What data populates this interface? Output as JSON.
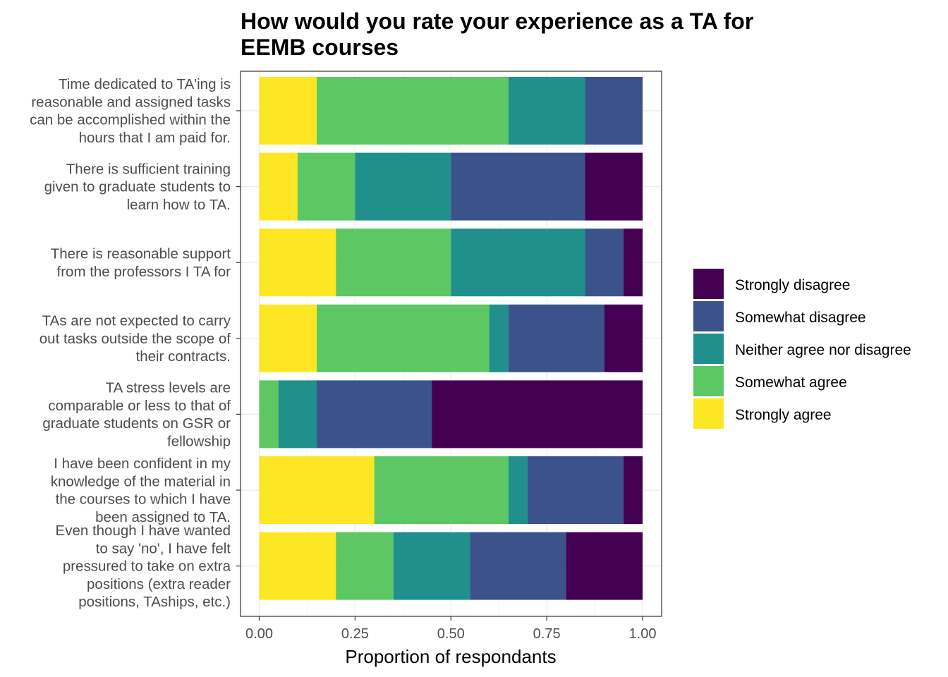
{
  "chart_data": {
    "type": "bar",
    "orientation": "horizontal",
    "stacked": true,
    "title": "How would you rate your experience as a TA for EEMB courses",
    "title_lines": [
      "How would you rate your experience as a TA for",
      "EEMB courses"
    ],
    "xlabel": "Proportion of respondants",
    "ylabel": "",
    "xlim": [
      0,
      1
    ],
    "x_ticks": [
      0,
      0.25,
      0.5,
      0.75,
      1
    ],
    "x_tick_labels": [
      "0.00",
      "0.25",
      "0.50",
      "0.75",
      "1.00"
    ],
    "grid": true,
    "legend_position": "right",
    "categories": [
      {
        "lines": [
          "Time dedicated to TA'ing is",
          "reasonable and assigned tasks",
          "can be accomplished within the",
          "hours that I am paid for."
        ]
      },
      {
        "lines": [
          "There is sufficient training",
          "given to graduate students to",
          "learn how to TA."
        ]
      },
      {
        "lines": [
          "There is reasonable support",
          "from the professors I TA for"
        ]
      },
      {
        "lines": [
          "TAs are not expected to carry",
          "out tasks outside the scope of",
          "their contracts."
        ]
      },
      {
        "lines": [
          "TA stress levels are",
          "comparable or less to that of",
          "graduate students on GSR or",
          "fellowship"
        ]
      },
      {
        "lines": [
          "I have been confident in my",
          "knowledge of the material in",
          "the courses to which I have",
          "been assigned to TA."
        ]
      },
      {
        "lines": [
          "Even though I have wanted",
          "to say 'no', I have felt",
          "pressured to take on extra",
          "positions (extra reader",
          "positions, TAships, etc.)"
        ]
      }
    ],
    "series": [
      {
        "name": "Strongly agree",
        "color": "#FDE725",
        "values": [
          0.15,
          0.1,
          0.2,
          0.15,
          0.0,
          0.3,
          0.2
        ]
      },
      {
        "name": "Somewhat agree",
        "color": "#5DC863",
        "values": [
          0.5,
          0.15,
          0.3,
          0.45,
          0.05,
          0.35,
          0.15
        ]
      },
      {
        "name": "Neither agree nor disagree",
        "color": "#21908C",
        "values": [
          0.2,
          0.25,
          0.35,
          0.05,
          0.1,
          0.05,
          0.2
        ]
      },
      {
        "name": "Somewhat disagree",
        "color": "#3B528B",
        "values": [
          0.15,
          0.35,
          0.1,
          0.25,
          0.3,
          0.25,
          0.25
        ]
      },
      {
        "name": "Strongly disagree",
        "color": "#440154",
        "values": [
          0.0,
          0.15,
          0.05,
          0.1,
          0.55,
          0.05,
          0.2
        ]
      }
    ],
    "legend_order": [
      "Strongly disagree",
      "Somewhat disagree",
      "Neither agree nor disagree",
      "Somewhat agree",
      "Strongly agree"
    ]
  }
}
